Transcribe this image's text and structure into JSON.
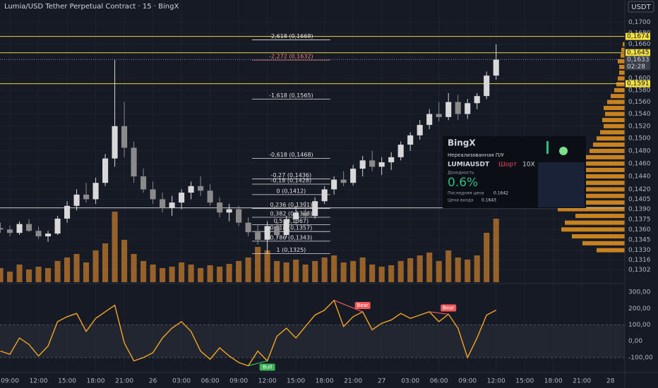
{
  "header": {
    "title": "Lumia/USD Tether Perpetual Contract · 15 · BingX",
    "currency": "USDT"
  },
  "chart_data": [
    {
      "type": "candlestick",
      "log_scale": true,
      "xlim": [
        -1.04,
        64.5
      ],
      "xticks": [
        {
          "value": 0,
          "label": "09:00"
        },
        {
          "value": 3,
          "label": "12:00"
        },
        {
          "value": 6,
          "label": "15:00"
        },
        {
          "value": 9,
          "label": "18:00"
        },
        {
          "value": 12,
          "label": "21:00"
        },
        {
          "value": 15,
          "label": "26"
        },
        {
          "value": 18,
          "label": "03:00"
        },
        {
          "value": 21,
          "label": "06:00"
        },
        {
          "value": 24,
          "label": "09:00"
        },
        {
          "value": 27,
          "label": "12:00"
        },
        {
          "value": 30,
          "label": "15:00"
        },
        {
          "value": 33,
          "label": "18:00"
        },
        {
          "value": 36,
          "label": "21:00"
        },
        {
          "value": 39,
          "label": "27"
        },
        {
          "value": 42,
          "label": "03:00"
        },
        {
          "value": 45,
          "label": "06:00"
        },
        {
          "value": 48,
          "label": "09:00"
        },
        {
          "value": 51,
          "label": "12:00"
        },
        {
          "value": 54,
          "label": "15:00"
        },
        {
          "value": 57,
          "label": "18:00"
        },
        {
          "value": 60,
          "label": "21:00"
        },
        {
          "value": 63,
          "label": "28"
        }
      ],
      "ylim": [
        0.1285,
        0.1741
      ],
      "yticks": [
        {
          "value": 0.17,
          "label": "0,1700"
        },
        {
          "value": 0.168,
          "label": "0,1680"
        },
        {
          "value": 0.166,
          "label": "0,1660"
        },
        {
          "value": 0.16,
          "label": "0,1600"
        },
        {
          "value": 0.158,
          "label": "0,1580"
        },
        {
          "value": 0.156,
          "label": "0,1560"
        },
        {
          "value": 0.154,
          "label": "0,1540"
        },
        {
          "value": 0.152,
          "label": "0,1520"
        },
        {
          "value": 0.15,
          "label": "0,1500"
        },
        {
          "value": 0.148,
          "label": "0,1480"
        },
        {
          "value": 0.146,
          "label": "0,1460"
        },
        {
          "value": 0.144,
          "label": "0,1440"
        },
        {
          "value": 0.142,
          "label": "0,1420"
        },
        {
          "value": 0.1405,
          "label": "0,1405"
        },
        {
          "value": 0.139,
          "label": "0,1390"
        },
        {
          "value": 0.1375,
          "label": "0,1375"
        },
        {
          "value": 0.136,
          "label": "0,1360"
        },
        {
          "value": 0.1345,
          "label": "0,1345"
        },
        {
          "value": 0.133,
          "label": "0,1330"
        },
        {
          "value": 0.1316,
          "label": "0,1316"
        },
        {
          "value": 0.1302,
          "label": "0,1302"
        }
      ],
      "up_color": "#d8d8d8",
      "down_color": "#8a8a8a",
      "volume_color": "#b8742a",
      "x": [
        -1,
        0,
        1,
        2,
        3,
        4,
        5,
        6,
        7,
        8,
        9,
        10,
        11,
        12,
        13,
        14,
        15,
        16,
        17,
        18,
        19,
        20,
        21,
        22,
        23,
        24,
        25,
        26,
        27,
        28,
        29,
        30,
        31,
        32,
        33,
        34,
        35,
        36,
        37,
        38,
        39,
        40,
        41,
        42,
        43,
        44,
        45,
        46,
        47,
        48,
        49,
        50,
        51
      ],
      "open": [
        0.1362,
        0.136,
        0.1355,
        0.1368,
        0.1358,
        0.135,
        0.1354,
        0.1376,
        0.1395,
        0.1412,
        0.1405,
        0.143,
        0.1468,
        0.152,
        0.1485,
        0.144,
        0.142,
        0.1405,
        0.1392,
        0.14,
        0.1415,
        0.1425,
        0.1418,
        0.14,
        0.1385,
        0.139,
        0.137,
        0.1356,
        0.1345,
        0.1365,
        0.1352,
        0.1375,
        0.1385,
        0.138,
        0.1402,
        0.142,
        0.1435,
        0.143,
        0.1452,
        0.1465,
        0.1455,
        0.1462,
        0.147,
        0.149,
        0.1505,
        0.1522,
        0.154,
        0.1535,
        0.156,
        0.154,
        0.1558,
        0.157,
        0.1605
      ],
      "high": [
        0.137,
        0.1366,
        0.1372,
        0.1375,
        0.1364,
        0.1358,
        0.138,
        0.1402,
        0.142,
        0.143,
        0.1438,
        0.1475,
        0.1632,
        0.156,
        0.1495,
        0.1452,
        0.1432,
        0.1415,
        0.141,
        0.142,
        0.1432,
        0.144,
        0.1428,
        0.1408,
        0.1398,
        0.1395,
        0.1378,
        0.1368,
        0.1372,
        0.1375,
        0.138,
        0.1395,
        0.1402,
        0.1408,
        0.1425,
        0.144,
        0.1448,
        0.1458,
        0.1472,
        0.148,
        0.147,
        0.1478,
        0.1495,
        0.151,
        0.153,
        0.1548,
        0.156,
        0.1575,
        0.1572,
        0.1565,
        0.1575,
        0.1612,
        0.166
      ],
      "low": [
        0.1355,
        0.135,
        0.1352,
        0.1356,
        0.1346,
        0.1342,
        0.1352,
        0.137,
        0.1388,
        0.14,
        0.1398,
        0.1425,
        0.1455,
        0.147,
        0.143,
        0.1415,
        0.1398,
        0.1385,
        0.138,
        0.139,
        0.1405,
        0.141,
        0.1395,
        0.1378,
        0.1372,
        0.1365,
        0.135,
        0.1338,
        0.1325,
        0.1345,
        0.1348,
        0.1368,
        0.1375,
        0.1376,
        0.1398,
        0.1412,
        0.1425,
        0.1426,
        0.144,
        0.1448,
        0.1442,
        0.145,
        0.1465,
        0.148,
        0.1498,
        0.1515,
        0.1528,
        0.153,
        0.153,
        0.1532,
        0.1548,
        0.1565,
        0.1598
      ],
      "close": [
        0.136,
        0.1355,
        0.1368,
        0.1358,
        0.135,
        0.1354,
        0.1376,
        0.1395,
        0.1412,
        0.1405,
        0.143,
        0.1468,
        0.152,
        0.1485,
        0.144,
        0.142,
        0.1405,
        0.1392,
        0.14,
        0.1415,
        0.1425,
        0.1418,
        0.14,
        0.1385,
        0.139,
        0.137,
        0.1356,
        0.1345,
        0.1365,
        0.1352,
        0.1375,
        0.1385,
        0.138,
        0.1402,
        0.142,
        0.1435,
        0.143,
        0.1452,
        0.1465,
        0.1455,
        0.1462,
        0.147,
        0.149,
        0.1505,
        0.1522,
        0.154,
        0.1535,
        0.156,
        0.154,
        0.1558,
        0.157,
        0.1605,
        0.1633
      ],
      "volume": [
        20,
        15,
        25,
        18,
        22,
        20,
        30,
        35,
        40,
        28,
        45,
        55,
        100,
        60,
        40,
        30,
        25,
        20,
        22,
        28,
        25,
        20,
        24,
        22,
        26,
        30,
        35,
        50,
        45,
        30,
        28,
        32,
        25,
        30,
        35,
        38,
        28,
        30,
        35,
        25,
        22,
        24,
        30,
        34,
        38,
        42,
        30,
        45,
        35,
        32,
        38,
        70,
        90
      ],
      "volume_profile": {
        "color": "#e8951f",
        "prices": [
          0.133,
          0.134,
          0.135,
          0.136,
          0.137,
          0.138,
          0.139,
          0.14,
          0.141,
          0.142,
          0.143,
          0.144,
          0.145,
          0.146,
          0.147,
          0.148,
          0.149,
          0.15,
          0.151,
          0.152,
          0.153,
          0.154,
          0.155,
          0.156,
          0.157,
          0.158,
          0.159,
          0.16,
          0.161,
          0.162,
          0.163,
          0.164,
          0.165,
          0.166
        ],
        "values": [
          40,
          60,
          75,
          90,
          85,
          70,
          95,
          110,
          115,
          105,
          100,
          90,
          70,
          60,
          55,
          50,
          45,
          40,
          35,
          30,
          32,
          28,
          30,
          25,
          20,
          15,
          12,
          10,
          8,
          8,
          10,
          6,
          5,
          3
        ]
      },
      "hlines": [
        {
          "value": 0.1674,
          "color": "#e6d34a"
        },
        {
          "value": 0.1645,
          "color": "#e6d34a"
        },
        {
          "value": 0.1591,
          "color": "#e6d34a"
        },
        {
          "value": 0.1392,
          "color": "#c8c8c8"
        }
      ],
      "price_labels": [
        {
          "value": 0.1674,
          "label": "0,1674",
          "color": "#f5e042"
        },
        {
          "value": 0.1645,
          "label": "0,1645",
          "color": "#f5e042"
        },
        {
          "value": 0.1633,
          "label": "0,1633",
          "color": "#3a3e48",
          "sublabel": "02:28"
        },
        {
          "value": 0.1591,
          "label": "0,1591",
          "color": "#f5e042"
        }
      ],
      "fib_range": [
        25.4,
        33.6
      ],
      "fib_levels": [
        {
          "label": "-2,618 (0,1668)",
          "value": 0.1668,
          "color": "#e0e0e0"
        },
        {
          "label": "-2,272 (0,1632)",
          "value": 0.1632,
          "color": "#f08080"
        },
        {
          "label": "-1,618 (0,1565)",
          "value": 0.1565,
          "color": "#e0e0e0"
        },
        {
          "label": "-0,618 (0,1468)",
          "value": 0.1468,
          "color": "#e0e0e0"
        },
        {
          "label": "-0,27 (0,1436)",
          "value": 0.1436,
          "color": "#e0e0e0"
        },
        {
          "label": "-0,18 (0,1428)",
          "value": 0.1428,
          "color": "#e0e0e0"
        },
        {
          "label": "0 (0,1412)",
          "value": 0.1412,
          "color": "#e0e0e0"
        },
        {
          "label": "0,236 (0,1391)",
          "value": 0.1391,
          "color": "#e0e0e0"
        },
        {
          "label": "0,382 (0,1378)",
          "value": 0.1378,
          "color": "#e0e0e0"
        },
        {
          "label": "0,5 (0,1367)",
          "value": 0.1367,
          "color": "#e0e0e0"
        },
        {
          "label": "0,618 (0,1357)",
          "value": 0.1357,
          "color": "#e0e0e0"
        },
        {
          "label": "0,786 (0,1343)",
          "value": 0.1343,
          "color": "#e0e0e0"
        },
        {
          "label": "1 (0,1325)",
          "value": 0.1325,
          "color": "#e0e0e0"
        }
      ]
    },
    {
      "type": "line",
      "color": "#f5a623",
      "x": [
        -1,
        0,
        1,
        2,
        3,
        4,
        5,
        6,
        7,
        8,
        9,
        10,
        11,
        12,
        13,
        14,
        15,
        16,
        17,
        18,
        19,
        20,
        21,
        22,
        23,
        24,
        25,
        26,
        27,
        28,
        29,
        30,
        31,
        32,
        33,
        34,
        35,
        36,
        37,
        38,
        39,
        40,
        41,
        42,
        43,
        44,
        45,
        46,
        47,
        48,
        49,
        50,
        51
      ],
      "values": [
        -60,
        -80,
        20,
        -20,
        -90,
        -30,
        120,
        150,
        170,
        60,
        140,
        180,
        220,
        -10,
        -120,
        -100,
        -70,
        20,
        80,
        120,
        60,
        -60,
        -110,
        -40,
        -90,
        -130,
        -150,
        -60,
        -120,
        30,
        80,
        20,
        90,
        160,
        190,
        250,
        90,
        150,
        180,
        70,
        110,
        130,
        170,
        140,
        160,
        180,
        120,
        165,
        80,
        -100,
        20,
        160,
        190
      ],
      "ylim": [
        -178,
        348
      ],
      "yticks": [
        {
          "value": 300,
          "label": "300,00"
        },
        {
          "value": 200,
          "label": "200,00"
        },
        {
          "value": 100,
          "label": "100,00"
        },
        {
          "value": 0,
          "label": "0,00"
        },
        {
          "value": -100,
          "label": "-100,00"
        }
      ],
      "band": [
        -100,
        100
      ],
      "divergences": [
        {
          "label": "Bear",
          "x": [
            34,
            37
          ],
          "color": "#f05a5a"
        },
        {
          "label": "Bear",
          "x": [
            44,
            46
          ],
          "color": "#f05a5a"
        },
        {
          "label": "Bull",
          "x": [
            25,
            27
          ],
          "color": "#3cb25a"
        }
      ]
    }
  ],
  "overlay": {
    "brand": "BingX",
    "subtitle": "Нереализованная П/У",
    "pair": "LUMIAUSDT",
    "side": "Шорт",
    "leverage": "10X",
    "yield_label": "Доходность",
    "yield": "0.6%",
    "last_label": "Последняя цена",
    "last": "0.1642",
    "entry_label": "Цена входа",
    "entry": "0.1643"
  }
}
